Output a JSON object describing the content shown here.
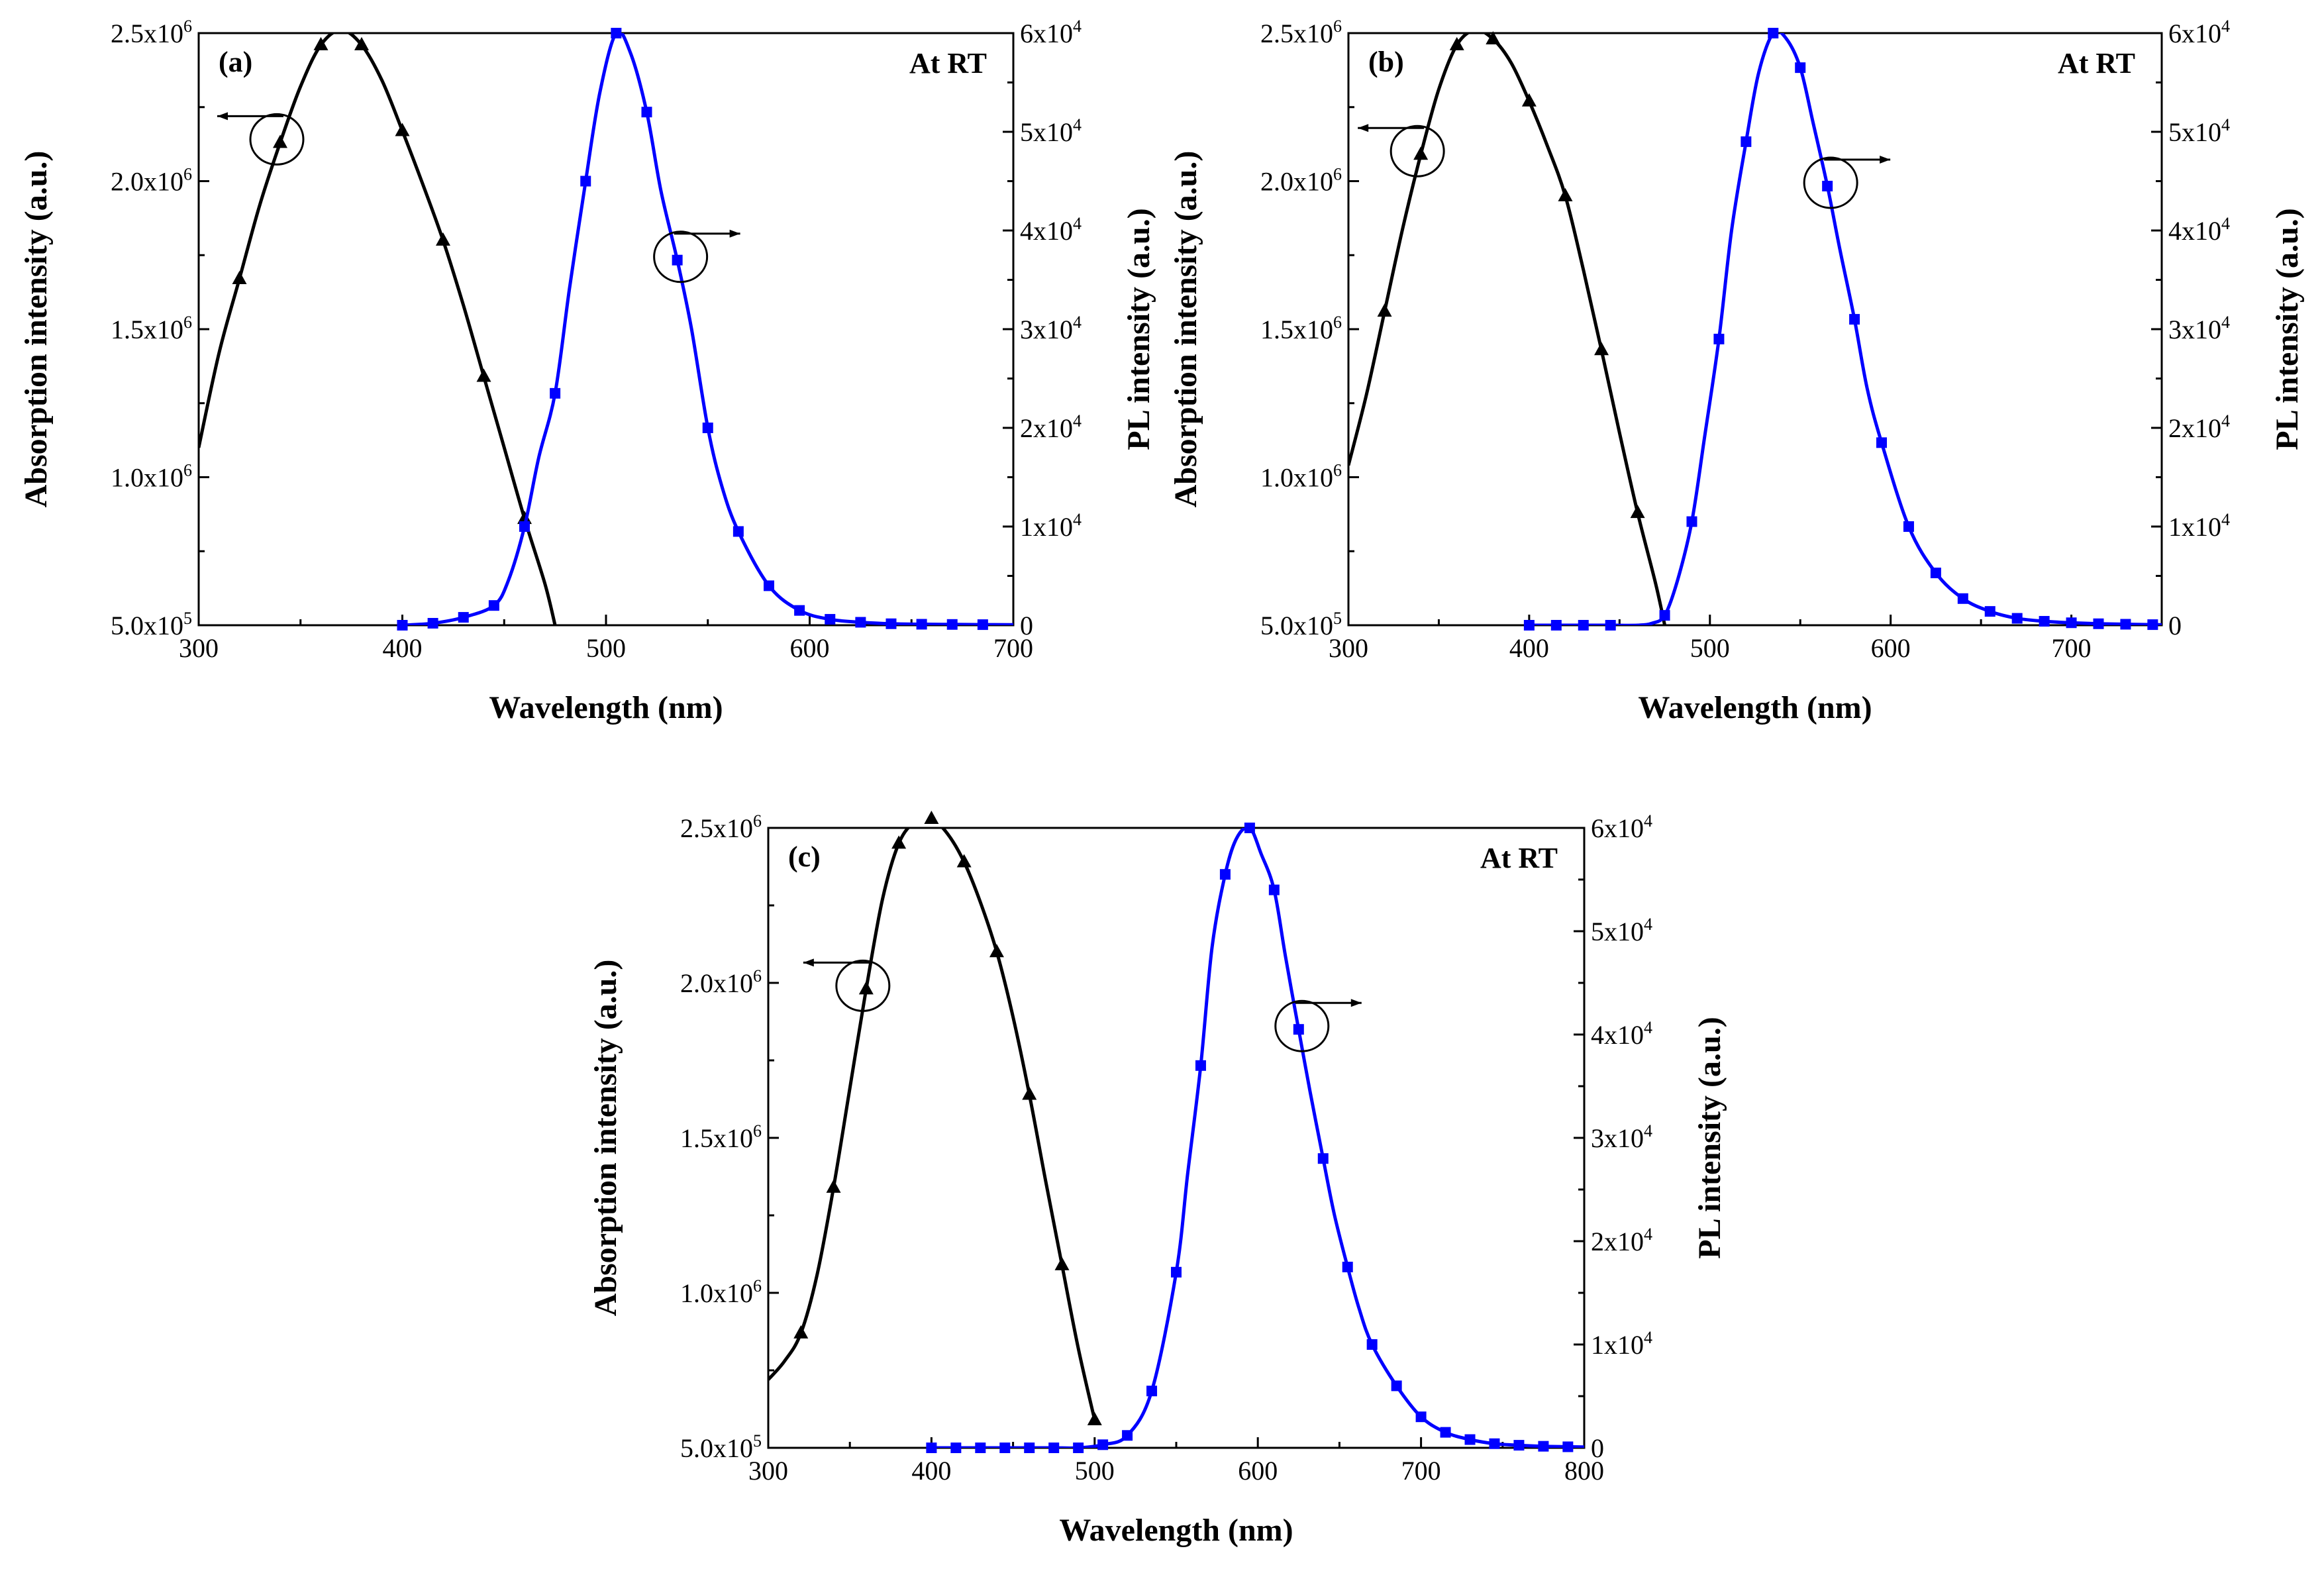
{
  "chart_data": [
    {
      "type": "line",
      "panel_label": "(a)",
      "annotation": "At RT",
      "xlabel": "Wavelength (nm)",
      "ylabel_left": "Absorption intensity (a.u.)",
      "ylabel_right": "PL intensity (a.u.)",
      "xlim": [
        300,
        700
      ],
      "ylim_left": [
        500000,
        2500000
      ],
      "ylim_right": [
        0,
        60000
      ],
      "x_ticks": [
        "300",
        "400",
        "500",
        "600",
        "700"
      ],
      "y_left_ticks": [
        {
          "mantissa": "5.0x10",
          "exp": "5"
        },
        {
          "mantissa": "1.0x10",
          "exp": "6"
        },
        {
          "mantissa": "1.5x10",
          "exp": "6"
        },
        {
          "mantissa": "2.0x10",
          "exp": "6"
        },
        {
          "mantissa": "2.5x10",
          "exp": "6"
        }
      ],
      "y_right_ticks": [
        {
          "mantissa": "0",
          "exp": ""
        },
        {
          "mantissa": "1x10",
          "exp": "4"
        },
        {
          "mantissa": "2x10",
          "exp": "4"
        },
        {
          "mantissa": "3x10",
          "exp": "4"
        },
        {
          "mantissa": "4x10",
          "exp": "4"
        },
        {
          "mantissa": "5x10",
          "exp": "4"
        },
        {
          "mantissa": "6x10",
          "exp": "4"
        }
      ],
      "series": [
        {
          "name": "Absorption",
          "axis": "left",
          "color": "#000000",
          "marker": "triangle",
          "x": [
            300,
            310,
            320,
            330,
            340,
            350,
            360,
            370,
            380,
            390,
            400,
            410,
            420,
            430,
            440,
            450,
            460,
            470,
            475
          ],
          "y": [
            1100000,
            1420000,
            1670000,
            1920000,
            2130000,
            2320000,
            2460000,
            2510000,
            2460000,
            2340000,
            2170000,
            1990000,
            1800000,
            1580000,
            1340000,
            1100000,
            860000,
            640000,
            500000
          ],
          "marker_x": [
            320,
            340,
            360,
            380,
            400,
            420,
            440,
            460
          ]
        },
        {
          "name": "PL",
          "axis": "right",
          "color": "#0000ff",
          "marker": "square",
          "x": [
            400,
            415,
            430,
            445,
            452,
            460,
            467,
            475,
            482,
            490,
            497,
            505,
            512,
            520,
            527,
            535,
            542,
            550,
            557,
            565,
            580,
            595,
            610,
            625,
            640,
            655,
            670,
            685,
            700
          ],
          "y": [
            0,
            200,
            800,
            2000,
            4500,
            10000,
            17000,
            23500,
            34000,
            45000,
            54000,
            60000,
            58000,
            52000,
            44000,
            37000,
            30000,
            20000,
            14000,
            9500,
            4000,
            1500,
            600,
            300,
            150,
            100,
            80,
            60,
            50
          ],
          "marker_x": [
            400,
            415,
            430,
            445,
            460,
            475,
            490,
            505,
            520,
            535,
            550,
            565,
            580,
            595,
            610,
            625,
            640,
            655,
            670,
            685
          ]
        }
      ]
    },
    {
      "type": "line",
      "panel_label": "(b)",
      "annotation": "At RT",
      "xlabel": "Wavelength (nm)",
      "ylabel_left": "Absorption intensity (a.u.)",
      "ylabel_right": "PL intensity (a.u.)",
      "xlim": [
        300,
        750
      ],
      "ylim_left": [
        500000,
        2500000
      ],
      "ylim_right": [
        0,
        60000
      ],
      "x_ticks": [
        "300",
        "400",
        "500",
        "600",
        "700"
      ],
      "y_left_ticks": [
        {
          "mantissa": "5.0x10",
          "exp": "5"
        },
        {
          "mantissa": "1.0x10",
          "exp": "6"
        },
        {
          "mantissa": "1.5x10",
          "exp": "6"
        },
        {
          "mantissa": "2.0x10",
          "exp": "6"
        },
        {
          "mantissa": "2.5x10",
          "exp": "6"
        }
      ],
      "y_right_ticks": [
        {
          "mantissa": "0",
          "exp": ""
        },
        {
          "mantissa": "1x10",
          "exp": "4"
        },
        {
          "mantissa": "2x10",
          "exp": "4"
        },
        {
          "mantissa": "3x10",
          "exp": "4"
        },
        {
          "mantissa": "4x10",
          "exp": "4"
        },
        {
          "mantissa": "5x10",
          "exp": "4"
        },
        {
          "mantissa": "6x10",
          "exp": "4"
        }
      ],
      "series": [
        {
          "name": "Absorption",
          "axis": "left",
          "color": "#000000",
          "marker": "triangle",
          "x": [
            300,
            310,
            320,
            330,
            340,
            350,
            360,
            370,
            380,
            390,
            400,
            410,
            420,
            430,
            440,
            450,
            460,
            470,
            475
          ],
          "y": [
            1040000,
            1280000,
            1560000,
            1840000,
            2090000,
            2310000,
            2460000,
            2510000,
            2480000,
            2400000,
            2270000,
            2120000,
            1950000,
            1700000,
            1430000,
            1150000,
            880000,
            640000,
            500000
          ],
          "marker_x": [
            320,
            340,
            360,
            380,
            400,
            420,
            440,
            460
          ]
        },
        {
          "name": "PL",
          "axis": "right",
          "color": "#0000ff",
          "marker": "square",
          "x": [
            400,
            415,
            430,
            445,
            460,
            468,
            475,
            482,
            490,
            497,
            505,
            512,
            520,
            527,
            535,
            542,
            550,
            557,
            565,
            572,
            580,
            587,
            595,
            610,
            625,
            640,
            655,
            670,
            685,
            700,
            715,
            730,
            745,
            750
          ],
          "y": [
            0,
            0,
            0,
            0,
            0,
            200,
            1000,
            4500,
            10500,
            19000,
            29000,
            40000,
            49000,
            56000,
            60000,
            59500,
            56500,
            51000,
            44500,
            38000,
            31000,
            24000,
            18500,
            10000,
            5300,
            2700,
            1400,
            700,
            400,
            250,
            150,
            100,
            60,
            50
          ],
          "marker_x": [
            400,
            415,
            430,
            445,
            475,
            490,
            505,
            520,
            535,
            550,
            565,
            580,
            595,
            610,
            625,
            640,
            655,
            670,
            685,
            700,
            715,
            730,
            745
          ]
        }
      ]
    },
    {
      "type": "line",
      "panel_label": "(c)",
      "annotation": "At RT",
      "xlabel": "Wavelength (nm)",
      "ylabel_left": "Absorption intensity (a.u.)",
      "ylabel_right": "PL intensity (a.u.)",
      "xlim": [
        300,
        800
      ],
      "ylim_left": [
        500000,
        2500000
      ],
      "ylim_right": [
        0,
        60000
      ],
      "x_ticks": [
        "300",
        "400",
        "500",
        "600",
        "700",
        "800"
      ],
      "y_left_ticks": [
        {
          "mantissa": "5.0x10",
          "exp": "5"
        },
        {
          "mantissa": "1.0x10",
          "exp": "6"
        },
        {
          "mantissa": "1.5x10",
          "exp": "6"
        },
        {
          "mantissa": "2.0x10",
          "exp": "6"
        },
        {
          "mantissa": "2.5x10",
          "exp": "6"
        }
      ],
      "y_right_ticks": [
        {
          "mantissa": "0",
          "exp": ""
        },
        {
          "mantissa": "1x10",
          "exp": "4"
        },
        {
          "mantissa": "2x10",
          "exp": "4"
        },
        {
          "mantissa": "3x10",
          "exp": "4"
        },
        {
          "mantissa": "4x10",
          "exp": "4"
        },
        {
          "mantissa": "5x10",
          "exp": "4"
        },
        {
          "mantissa": "6x10",
          "exp": "4"
        }
      ],
      "series": [
        {
          "name": "Absorption",
          "axis": "left",
          "color": "#000000",
          "marker": "triangle",
          "x": [
            300,
            310,
            320,
            330,
            340,
            350,
            360,
            370,
            380,
            390,
            400,
            410,
            420,
            430,
            440,
            450,
            460,
            470,
            480,
            490,
            500
          ],
          "y": [
            720000,
            780000,
            870000,
            1060000,
            1340000,
            1660000,
            1980000,
            2270000,
            2450000,
            2520000,
            2530000,
            2480000,
            2390000,
            2260000,
            2100000,
            1890000,
            1640000,
            1360000,
            1090000,
            820000,
            590000
          ],
          "marker_x": [
            320,
            340,
            360,
            380,
            400,
            420,
            440,
            460,
            480,
            500
          ]
        },
        {
          "name": "PL",
          "axis": "right",
          "color": "#0000ff",
          "marker": "square",
          "x": [
            400,
            415,
            430,
            445,
            460,
            475,
            490,
            505,
            520,
            535,
            550,
            557,
            565,
            572,
            580,
            587,
            595,
            602,
            610,
            617,
            625,
            632,
            640,
            647,
            655,
            662,
            670,
            685,
            700,
            715,
            730,
            745,
            760,
            775,
            790,
            800
          ],
          "y": [
            0,
            0,
            0,
            0,
            0,
            0,
            0,
            300,
            1200,
            5500,
            17000,
            26500,
            37000,
            48500,
            55500,
            59000,
            60000,
            57500,
            54000,
            47500,
            40500,
            34500,
            28000,
            22500,
            17500,
            13500,
            10000,
            6000,
            3000,
            1500,
            800,
            400,
            250,
            150,
            100,
            80
          ],
          "marker_x": [
            400,
            415,
            430,
            445,
            460,
            475,
            490,
            505,
            520,
            535,
            550,
            565,
            580,
            595,
            610,
            625,
            640,
            655,
            670,
            685,
            700,
            715,
            730,
            745,
            760,
            775,
            790
          ]
        }
      ]
    }
  ]
}
